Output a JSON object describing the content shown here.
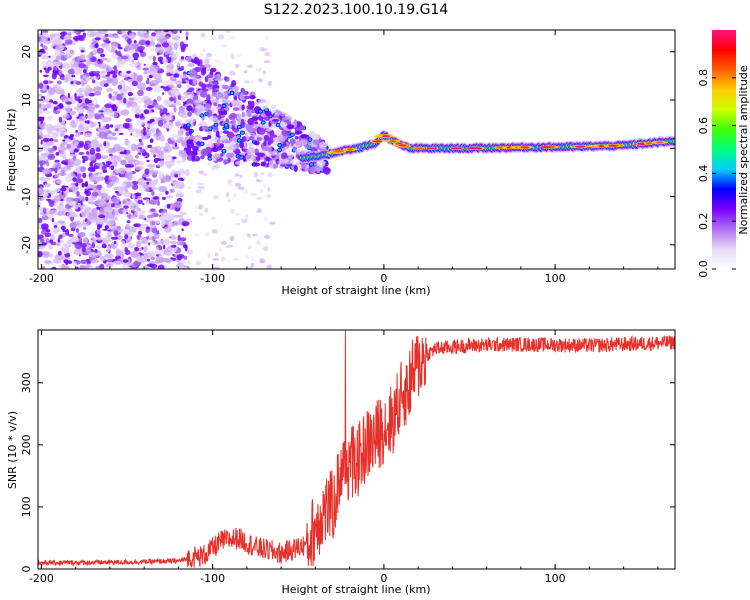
{
  "title": "S122.2023.100.10.19.G14",
  "chart_data": [
    {
      "type": "heatmap",
      "xlabel": "Height of straight line (km)",
      "ylabel": "Frequency (Hz)",
      "xlim": [
        -202,
        170
      ],
      "ylim": [
        -25,
        24.5
      ],
      "xticks": [
        -200,
        -100,
        0,
        100
      ],
      "xtick_labels": [
        "-200",
        "-100",
        "0",
        "100"
      ],
      "yticks": [
        -20,
        -10,
        0,
        10,
        20
      ],
      "ytick_labels": [
        "-20",
        "-10",
        "0",
        "10",
        "20"
      ],
      "colorbar": {
        "label": "Normalized spectral amplitude",
        "range": [
          0,
          1
        ],
        "ticks": [
          0,
          0.2,
          0.4,
          0.6,
          0.8
        ],
        "tick_labels": [
          "0.0",
          "0.2",
          "0.4",
          "0.6",
          "0.8"
        ],
        "colors": [
          "#ffffff",
          "#e8d8f8",
          "#b070f0",
          "#7a00ff",
          "#0000ff",
          "#00ccff",
          "#00ff80",
          "#40ff00",
          "#ccff00",
          "#ffcc00",
          "#ff6000",
          "#ff0000",
          "#ff1480"
        ]
      },
      "ridge": {
        "x": [
          -45,
          -35,
          -25,
          -15,
          -5,
          0,
          5,
          15,
          30,
          50,
          80,
          110,
          140,
          170
        ],
        "y": [
          -2.0,
          -1.5,
          -0.5,
          0,
          1,
          2.8,
          1.5,
          0,
          0,
          0,
          0.2,
          0.3,
          0.6,
          1.5
        ]
      }
    },
    {
      "type": "line",
      "xlabel": "Height of straight line (km)",
      "ylabel": "SNR (10 * v/v)",
      "xlim": [
        -202,
        170
      ],
      "ylim": [
        0,
        385
      ],
      "xticks": [
        -200,
        -100,
        0,
        100
      ],
      "xtick_labels": [
        "-200",
        "-100",
        "0",
        "100"
      ],
      "yticks": [
        0,
        100,
        200,
        300
      ],
      "ytick_labels": [
        "0",
        "100",
        "200",
        "300"
      ],
      "color": "#e8302a",
      "envelope": {
        "x": [
          -202,
          -150,
          -120,
          -105,
          -95,
          -85,
          -75,
          -60,
          -45,
          -35,
          -30,
          -25,
          -20,
          -15,
          -10,
          -5,
          0,
          5,
          10,
          15,
          20,
          25,
          30,
          50,
          80,
          120,
          170
        ],
        "y": [
          10,
          11,
          13,
          22,
          45,
          50,
          35,
          25,
          40,
          95,
          100,
          160,
          170,
          175,
          200,
          210,
          230,
          240,
          275,
          300,
          330,
          345,
          355,
          360,
          362,
          360,
          365
        ]
      }
    }
  ]
}
